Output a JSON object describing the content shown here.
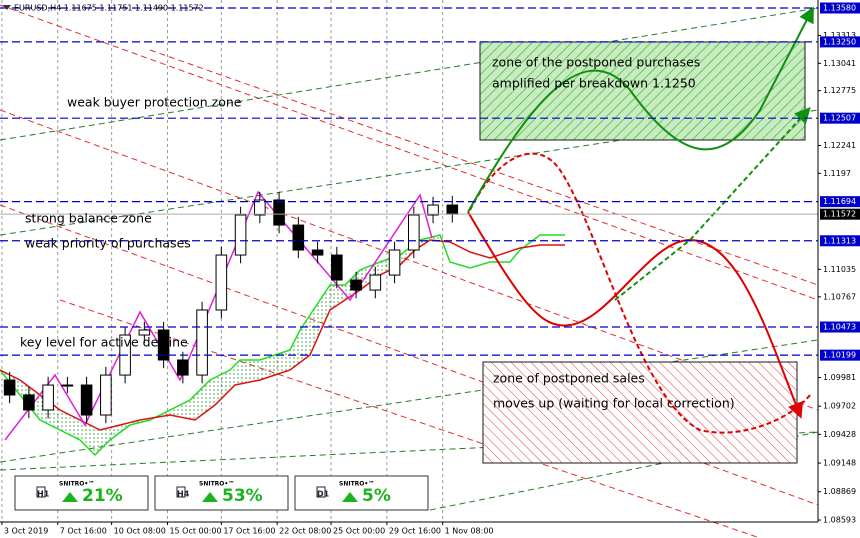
{
  "chart_data": {
    "type": "candlestick",
    "title": "EURUSD,H4  1.11675 1.11751 1.11490 1.11572",
    "x": [
      0,
      1,
      2,
      3,
      4,
      5,
      6,
      7,
      8,
      9,
      10,
      11,
      12,
      13,
      14,
      15,
      16,
      17,
      18,
      19,
      20,
      21,
      22,
      23
    ],
    "open": [
      1.09957,
      1.09811,
      1.09665,
      1.09908,
      1.09908,
      1.09616,
      1.10005,
      1.10395,
      1.10444,
      1.10152,
      1.10005,
      1.10639,
      1.11174,
      1.11564,
      1.1171,
      1.11466,
      1.11223,
      1.11174,
      1.10931,
      1.10833,
      1.10979,
      1.11223,
      1.11564,
      1.11661
    ],
    "high": [
      1.10037,
      1.09891,
      1.09988,
      1.09988,
      1.09988,
      1.10085,
      1.10475,
      1.10524,
      1.10524,
      1.10232,
      1.10719,
      1.11254,
      1.11644,
      1.1179,
      1.1179,
      1.11546,
      1.11303,
      1.11254,
      1.11011,
      1.11059,
      1.11303,
      1.11644,
      1.11741,
      1.11751
    ],
    "low": [
      1.09731,
      1.09585,
      1.09585,
      1.09828,
      1.09536,
      1.09536,
      1.09925,
      1.10315,
      1.10072,
      1.09925,
      1.09925,
      1.10559,
      1.11094,
      1.11484,
      1.11386,
      1.11143,
      1.11094,
      1.10851,
      1.10753,
      1.10753,
      1.10899,
      1.11143,
      1.11484,
      1.1149
    ],
    "close": [
      1.09811,
      1.09665,
      1.09908,
      1.09908,
      1.09616,
      1.10005,
      1.10395,
      1.10444,
      1.10152,
      1.10005,
      1.10639,
      1.11174,
      1.11564,
      1.1171,
      1.11466,
      1.11223,
      1.11174,
      1.10931,
      1.10833,
      1.10979,
      1.11223,
      1.11564,
      1.11661,
      1.11572
    ],
    "xlim": [
      -0.5,
      42
    ],
    "xticks": [
      {
        "value": -0.4,
        "label": "3 Oct 2019"
      },
      {
        "value": 2.5,
        "label": "7 Oct 16:00"
      },
      {
        "value": 5.3,
        "label": "10 Oct 08:00"
      },
      {
        "value": 8.2,
        "label": "15 Oct 00:00"
      },
      {
        "value": 11,
        "label": "17 Oct 16:00"
      },
      {
        "value": 13.9,
        "label": "22 Oct 08:00"
      },
      {
        "value": 16.7,
        "label": "25 Oct 00:00"
      },
      {
        "value": 19.6,
        "label": "29 Oct 16:00"
      },
      {
        "value": 22.5,
        "label": "1 Nov 08:00"
      }
    ],
    "ylim": [
      1.08574,
      1.13658
    ],
    "yticks": [
      1.13313,
      1.13041,
      1.12775,
      1.12241,
      1.1197,
      1.11035,
      1.10767,
      1.09981,
      1.09702,
      1.09428,
      1.09148,
      1.08869,
      1.08593
    ],
    "levels": [
      {
        "value": 1.1358,
        "label": "1.13580"
      },
      {
        "value": 1.1325,
        "label": "1.13250"
      },
      {
        "value": 1.12507,
        "label": "1.12507"
      },
      {
        "value": 1.11694,
        "label": "1.11694"
      },
      {
        "value": 1.11313,
        "label": "1.11313"
      },
      {
        "value": 1.10473,
        "label": "1.10473"
      },
      {
        "value": 1.10199,
        "label": "1.10199"
      }
    ],
    "level_color": "#0000cc",
    "last_price": 1.11572,
    "annotations": [
      "weak buyer protection zone",
      "strong balance zone",
      "weak priority of purchases",
      "key level for active decline",
      "zone of the postponed purchases",
      "amplified per breakdown 1.1250",
      "zone of postponed sales",
      "moves up (waiting for local correction)"
    ]
  },
  "indicators": [
    {
      "timeframe": "H1",
      "brand": "SNITRO•™",
      "change": "21%"
    },
    {
      "timeframe": "H4",
      "brand": "SNITRO•™",
      "change": "53%"
    },
    {
      "timeframe": "D1",
      "brand": "SNITRO•™",
      "change": "5%"
    }
  ]
}
